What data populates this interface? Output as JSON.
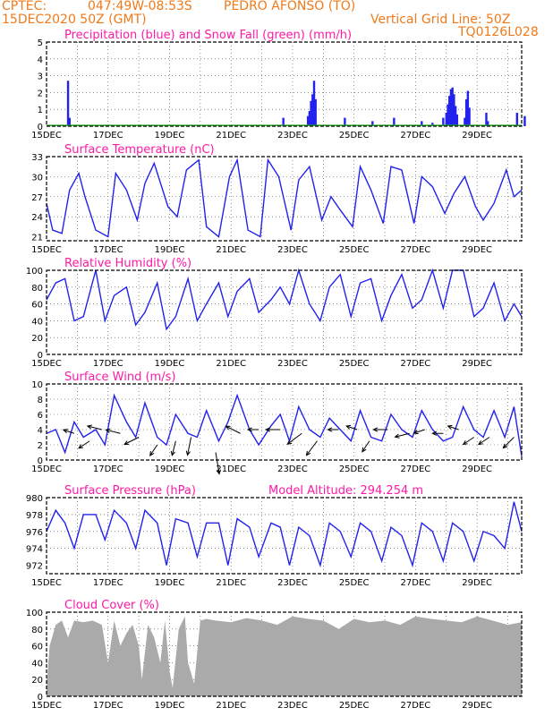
{
  "header": {
    "source": "CPTEC:",
    "coords": "047:49W-08:53S",
    "station": "PEDRO AFONSO (TO)",
    "run": "15DEC2020 50Z (GMT)",
    "grid_note": "Vertical Grid Line: 50Z",
    "code": "TQ0126L028"
  },
  "colors": {
    "header": "#f07a1a",
    "title": "#ff1aa6",
    "line": "#2222ee",
    "snow": "#22aa22",
    "cloud": "#aaaaaa",
    "wind_arrow": "#000000"
  },
  "x_labels": [
    "15DEC",
    "17DEC",
    "19DEC",
    "21DEC",
    "23DEC",
    "25DEC",
    "27DEC",
    "29DEC"
  ],
  "chart_data": [
    {
      "id": "precip",
      "type": "bar",
      "title": "Precipitation (blue) and Snow Fall (green) (mm/h)",
      "ylim": [
        0,
        5
      ],
      "yticks": [
        "0",
        "1",
        "2",
        "3",
        "4",
        "5"
      ],
      "series": [
        {
          "name": "Precipitation",
          "color": "#2222ee",
          "points": [
            [
              0.7,
              2.7
            ],
            [
              0.75,
              0.5
            ],
            [
              7.7,
              0.5
            ],
            [
              8.5,
              0.6
            ],
            [
              8.55,
              0.9
            ],
            [
              8.6,
              1.5
            ],
            [
              8.65,
              1.9
            ],
            [
              8.7,
              2.7
            ],
            [
              8.75,
              1.6
            ],
            [
              9.7,
              0.5
            ],
            [
              10.6,
              0.3
            ],
            [
              11.3,
              0.5
            ],
            [
              12.2,
              0.3
            ],
            [
              12.55,
              0.2
            ],
            [
              12.9,
              0.5
            ],
            [
              13.0,
              0.8
            ],
            [
              13.05,
              1.3
            ],
            [
              13.1,
              1.8
            ],
            [
              13.15,
              2.2
            ],
            [
              13.2,
              2.3
            ],
            [
              13.25,
              1.9
            ],
            [
              13.3,
              1.2
            ],
            [
              13.35,
              0.7
            ],
            [
              13.6,
              0.5
            ],
            [
              13.65,
              1.6
            ],
            [
              13.7,
              2.1
            ],
            [
              13.75,
              1.1
            ],
            [
              14.3,
              0.8
            ],
            [
              14.35,
              0.3
            ],
            [
              15.3,
              0.8
            ],
            [
              15.55,
              0.6
            ]
          ]
        },
        {
          "name": "Snow Fall",
          "color": "#22aa22",
          "values": []
        }
      ]
    },
    {
      "id": "temp",
      "type": "line",
      "title": "Surface Temperature (nC)",
      "ylim": [
        20.4,
        33
      ],
      "yticks": [
        "21",
        "24",
        "27",
        "30",
        "33"
      ],
      "x": [
        0,
        0.2,
        0.5,
        0.75,
        1.05,
        1.25,
        1.6,
        2.0,
        2.25,
        2.6,
        2.95,
        3.2,
        3.5,
        3.95,
        4.25,
        4.55,
        4.95,
        5.2,
        5.6,
        5.95,
        6.2,
        6.55,
        6.95,
        7.2,
        7.55,
        7.95,
        8.2,
        8.55,
        8.95,
        9.25,
        9.55,
        9.95,
        10.2,
        10.55,
        10.95,
        11.2,
        11.55,
        11.95,
        12.2,
        12.55,
        12.95,
        13.25,
        13.6,
        13.95,
        14.2,
        14.55,
        14.95,
        15.2,
        15.45
      ],
      "y": [
        26,
        22,
        21.5,
        28,
        30.5,
        27,
        22,
        21,
        30.5,
        28,
        23.5,
        29,
        32,
        25.5,
        24,
        31,
        32.5,
        22.5,
        21,
        30,
        32.5,
        22,
        21,
        32.5,
        30,
        22,
        29.5,
        31.5,
        23.5,
        27,
        25,
        22.5,
        31.5,
        28,
        23,
        31.5,
        31,
        23,
        30,
        28.5,
        24.5,
        27.5,
        30,
        25.5,
        23.5,
        26,
        31,
        27,
        28
      ]
    },
    {
      "id": "rh",
      "type": "line",
      "title": "Relative Humidity (%)",
      "ylim": [
        0,
        100
      ],
      "yticks": [
        "0",
        "20",
        "40",
        "60",
        "80",
        "100"
      ],
      "x": [
        0,
        0.3,
        0.6,
        0.9,
        1.2,
        1.6,
        1.9,
        2.2,
        2.6,
        2.9,
        3.2,
        3.6,
        3.9,
        4.2,
        4.6,
        4.9,
        5.2,
        5.6,
        5.9,
        6.2,
        6.6,
        6.9,
        7.3,
        7.6,
        7.9,
        8.2,
        8.55,
        8.9,
        9.2,
        9.55,
        9.9,
        10.2,
        10.55,
        10.9,
        11.2,
        11.55,
        11.9,
        12.2,
        12.55,
        12.9,
        13.2,
        13.55,
        13.9,
        14.2,
        14.55,
        14.9,
        15.2,
        15.45
      ],
      "y": [
        65,
        85,
        90,
        40,
        45,
        100,
        40,
        70,
        80,
        35,
        50,
        85,
        30,
        45,
        90,
        40,
        60,
        85,
        45,
        75,
        90,
        50,
        65,
        80,
        60,
        100,
        60,
        40,
        80,
        95,
        45,
        85,
        90,
        40,
        70,
        95,
        55,
        65,
        100,
        55,
        100,
        100,
        45,
        55,
        85,
        40,
        60,
        45
      ]
    },
    {
      "id": "wind",
      "type": "line",
      "title": "Surface Wind (m/s)",
      "ylim": [
        0,
        10
      ],
      "yticks": [
        "0",
        "2",
        "4",
        "6",
        "8",
        "10"
      ],
      "x": [
        0,
        0.3,
        0.6,
        0.9,
        1.2,
        1.6,
        1.9,
        2.2,
        2.6,
        2.9,
        3.2,
        3.6,
        3.9,
        4.2,
        4.6,
        4.9,
        5.2,
        5.6,
        5.9,
        6.2,
        6.6,
        6.9,
        7.3,
        7.6,
        7.9,
        8.2,
        8.55,
        8.9,
        9.2,
        9.55,
        9.9,
        10.2,
        10.55,
        10.9,
        11.2,
        11.55,
        11.9,
        12.2,
        12.55,
        12.9,
        13.2,
        13.55,
        13.9,
        14.2,
        14.55,
        14.9,
        15.2,
        15.45
      ],
      "y": [
        3.5,
        4,
        1,
        5,
        3,
        4,
        2,
        8.5,
        5,
        3,
        7.5,
        3,
        2,
        6,
        3.5,
        3,
        6.5,
        2.5,
        5,
        8.5,
        4,
        2,
        4.5,
        6,
        2.5,
        7,
        4,
        3,
        5.5,
        4,
        2.5,
        6.5,
        3,
        2.5,
        6,
        4,
        3,
        6.5,
        4,
        2.5,
        3,
        7,
        4,
        3,
        6.5,
        3,
        7,
        0.5
      ],
      "arrows": [
        [
          0.9,
          3.5,
          -3,
          1
        ],
        [
          1.4,
          2.5,
          -3,
          -2
        ],
        [
          1.8,
          4,
          -4,
          1
        ],
        [
          2.4,
          3.5,
          -4,
          1
        ],
        [
          3.0,
          3,
          -4,
          -2
        ],
        [
          3.6,
          2,
          -2,
          -3
        ],
        [
          4.2,
          2.5,
          -1,
          -4
        ],
        [
          4.7,
          3,
          -1,
          -5
        ],
        [
          5.5,
          1,
          1,
          -6
        ],
        [
          6.3,
          3.5,
          -4,
          2
        ],
        [
          6.9,
          4,
          -3,
          0
        ],
        [
          7.6,
          4,
          -4,
          0
        ],
        [
          8.3,
          3.5,
          -4,
          -3
        ],
        [
          8.8,
          2.5,
          -3,
          -4
        ],
        [
          9.5,
          4,
          -3,
          0
        ],
        [
          10.1,
          4,
          -3,
          1
        ],
        [
          10.5,
          2.5,
          -2,
          -3
        ],
        [
          11.1,
          4,
          -4,
          0
        ],
        [
          11.8,
          3.5,
          -4,
          -1
        ],
        [
          12.3,
          4,
          -3,
          -1
        ],
        [
          12.9,
          3.5,
          -3,
          0
        ],
        [
          13.4,
          4,
          -3,
          1
        ],
        [
          13.9,
          3,
          -3,
          -2
        ],
        [
          14.4,
          3,
          -3,
          -2
        ],
        [
          15.2,
          3,
          -3,
          -3
        ]
      ]
    },
    {
      "id": "pres",
      "type": "line",
      "title": "Surface Pressure (hPa)",
      "annotation": "Model Altitude: 294.254 m",
      "ylim": [
        971,
        980
      ],
      "yticks": [
        "972",
        "974",
        "976",
        "978",
        "980"
      ],
      "x": [
        0,
        0.3,
        0.6,
        0.9,
        1.2,
        1.6,
        1.9,
        2.2,
        2.6,
        2.9,
        3.2,
        3.6,
        3.9,
        4.2,
        4.6,
        4.9,
        5.2,
        5.6,
        5.9,
        6.2,
        6.6,
        6.9,
        7.3,
        7.6,
        7.9,
        8.2,
        8.55,
        8.9,
        9.2,
        9.55,
        9.9,
        10.2,
        10.55,
        10.9,
        11.2,
        11.55,
        11.9,
        12.2,
        12.55,
        12.9,
        13.2,
        13.55,
        13.9,
        14.2,
        14.55,
        14.9,
        15.2,
        15.45
      ],
      "y": [
        976,
        978.5,
        977,
        974,
        978,
        978,
        975,
        978.5,
        977,
        974,
        978.5,
        977,
        972,
        977.5,
        977,
        973,
        977,
        977,
        972,
        977.5,
        976.5,
        973,
        977,
        976.5,
        972,
        976.5,
        975.5,
        972,
        977,
        976,
        973,
        977,
        976,
        972.5,
        976.5,
        975.5,
        972,
        977,
        976,
        972.5,
        977,
        976,
        972.5,
        976,
        975.5,
        974,
        979.5,
        976
      ]
    },
    {
      "id": "cloud",
      "type": "area",
      "title": "Cloud Cover (%)",
      "ylim": [
        0,
        100
      ],
      "yticks": [
        "0",
        "20",
        "40",
        "60",
        "80",
        "100"
      ],
      "x": [
        0,
        0.1,
        0.3,
        0.5,
        0.7,
        0.9,
        1.2,
        1.5,
        1.8,
        2.0,
        2.2,
        2.4,
        2.6,
        2.8,
        3.0,
        3.1,
        3.3,
        3.5,
        3.7,
        3.85,
        4.0,
        4.1,
        4.3,
        4.5,
        4.6,
        4.8,
        5.0,
        5.2,
        5.5,
        6.0,
        6.5,
        7.0,
        7.5,
        8.0,
        8.5,
        9.0,
        9.5,
        10.0,
        10.5,
        11.0,
        11.5,
        12.0,
        12.5,
        13.0,
        13.5,
        14.0,
        14.5,
        15.0,
        15.45
      ],
      "y": [
        10,
        60,
        85,
        90,
        70,
        90,
        88,
        90,
        85,
        40,
        90,
        60,
        75,
        85,
        60,
        20,
        85,
        70,
        40,
        90,
        30,
        10,
        80,
        95,
        40,
        15,
        90,
        92,
        90,
        88,
        93,
        90,
        85,
        95,
        92,
        90,
        80,
        92,
        88,
        90,
        85,
        95,
        92,
        90,
        88,
        95,
        90,
        85,
        88
      ]
    }
  ]
}
